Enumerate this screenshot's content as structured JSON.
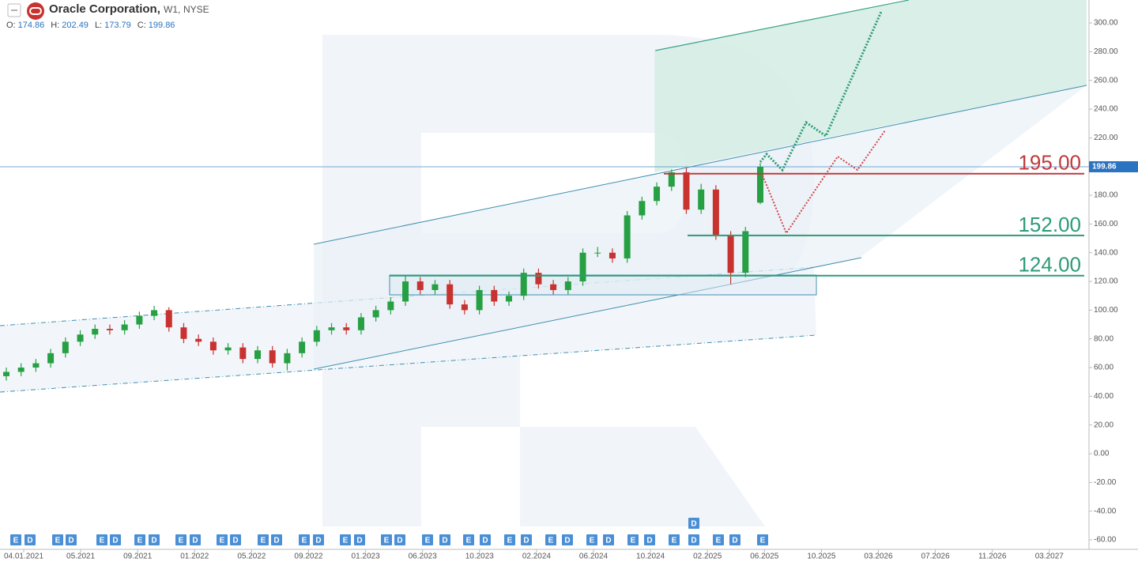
{
  "header": {
    "symbol": "Oracle Corporation,",
    "timeframe": "W1,",
    "exchange": "NYSE",
    "ohlc": [
      {
        "label": "O:",
        "value": "174.86"
      },
      {
        "label": "H:",
        "value": "202.49"
      },
      {
        "label": "L:",
        "value": "173.79"
      },
      {
        "label": "C:",
        "value": "199.86"
      }
    ]
  },
  "chart_data": {
    "type": "candlestick",
    "open": [
      54,
      57,
      60,
      63,
      70,
      78,
      83,
      87,
      86,
      90,
      96,
      100,
      88,
      80,
      78,
      72,
      74,
      66,
      72,
      63,
      70,
      78,
      86,
      88,
      86,
      95,
      100,
      106,
      120,
      114,
      118,
      104,
      100,
      114,
      106,
      110,
      126,
      118,
      114,
      120,
      140,
      140,
      136,
      166,
      176,
      186,
      196,
      170,
      184,
      152,
      126,
      174.86
    ],
    "high": [
      60,
      63,
      66,
      73,
      81,
      86,
      90,
      90,
      93,
      99,
      103,
      102,
      91,
      83,
      81,
      77,
      77,
      75,
      75,
      73,
      81,
      89,
      91,
      91,
      98,
      103,
      109,
      124,
      123,
      121,
      121,
      107,
      117,
      117,
      113,
      129,
      129,
      121,
      123,
      143,
      144,
      143,
      169,
      179,
      189,
      198,
      199,
      188,
      187,
      155,
      158,
      202.49
    ],
    "low": [
      51,
      54,
      57,
      60,
      67,
      75,
      80,
      83,
      83,
      87,
      93,
      85,
      77,
      75,
      69,
      69,
      63,
      63,
      60,
      58,
      67,
      75,
      83,
      83,
      83,
      92,
      97,
      103,
      111,
      111,
      101,
      97,
      97,
      103,
      103,
      107,
      115,
      111,
      111,
      117,
      137,
      133,
      133,
      163,
      173,
      183,
      167,
      167,
      149,
      118,
      123,
      173.79
    ],
    "close": [
      57,
      60,
      63,
      70,
      78,
      83,
      87,
      86,
      90,
      96,
      100,
      88,
      80,
      78,
      72,
      74,
      66,
      72,
      63,
      70,
      78,
      86,
      88,
      86,
      95,
      100,
      106,
      120,
      114,
      118,
      104,
      100,
      114,
      106,
      110,
      126,
      118,
      114,
      120,
      140,
      140,
      136,
      166,
      176,
      186,
      196,
      170,
      184,
      152,
      126,
      155,
      199.86
    ],
    "up_color": "#26a043",
    "down_color": "#c8322f",
    "ylim": [
      -66.6,
      316
    ],
    "yticks": [
      {
        "value": 300,
        "label": "300.00"
      },
      {
        "value": 280,
        "label": "280.00"
      },
      {
        "value": 260,
        "label": "260.00"
      },
      {
        "value": 240,
        "label": "240.00"
      },
      {
        "value": 220,
        "label": "220.00"
      },
      {
        "value": 200,
        "label": "200.00"
      },
      {
        "value": 180,
        "label": "180.00"
      },
      {
        "value": 160,
        "label": "160.00"
      },
      {
        "value": 140,
        "label": "140.00"
      },
      {
        "value": 120,
        "label": "120.00"
      },
      {
        "value": 100,
        "label": "100.00"
      },
      {
        "value": 80,
        "label": "80.00"
      },
      {
        "value": 60,
        "label": "60.00"
      },
      {
        "value": 40,
        "label": "40.00"
      },
      {
        "value": 20,
        "label": "20.00"
      },
      {
        "value": 0,
        "label": "0.00"
      },
      {
        "value": -20,
        "label": "-20.00"
      },
      {
        "value": -40,
        "label": "-40.00"
      },
      {
        "value": -60,
        "label": "-60.00"
      }
    ],
    "xticks": [
      "04.01.2021",
      "05.2021",
      "09.2021",
      "01.2022",
      "05.2022",
      "09.2022",
      "01.2023",
      "06.2023",
      "10.2023",
      "02.2024",
      "06.2024",
      "10.2024",
      "02.2025",
      "06.2025",
      "10.2025",
      "03.2026",
      "07.2026",
      "11.2026",
      "03.2027"
    ],
    "last_price": {
      "value": 199.86,
      "label": "199.86"
    },
    "levels": [
      {
        "value": 195,
        "label": "195.00",
        "color": "#c0393b"
      },
      {
        "value": 152,
        "label": "152.00",
        "color": "#2e9a78"
      },
      {
        "value": 124,
        "label": "124.00",
        "color": "#2e9a78"
      }
    ],
    "events": [
      "E",
      "D",
      "E",
      "D",
      "E",
      "D",
      "E",
      "D",
      "E",
      "D",
      "E",
      "D",
      "E",
      "D",
      "E",
      "D",
      "E",
      "D",
      "E",
      "D",
      "E",
      "D",
      "E",
      "D",
      "E",
      "D",
      "E",
      "D",
      "E",
      "D",
      "E",
      "D",
      "E",
      "D",
      "D",
      "E",
      "D",
      "E"
    ]
  }
}
